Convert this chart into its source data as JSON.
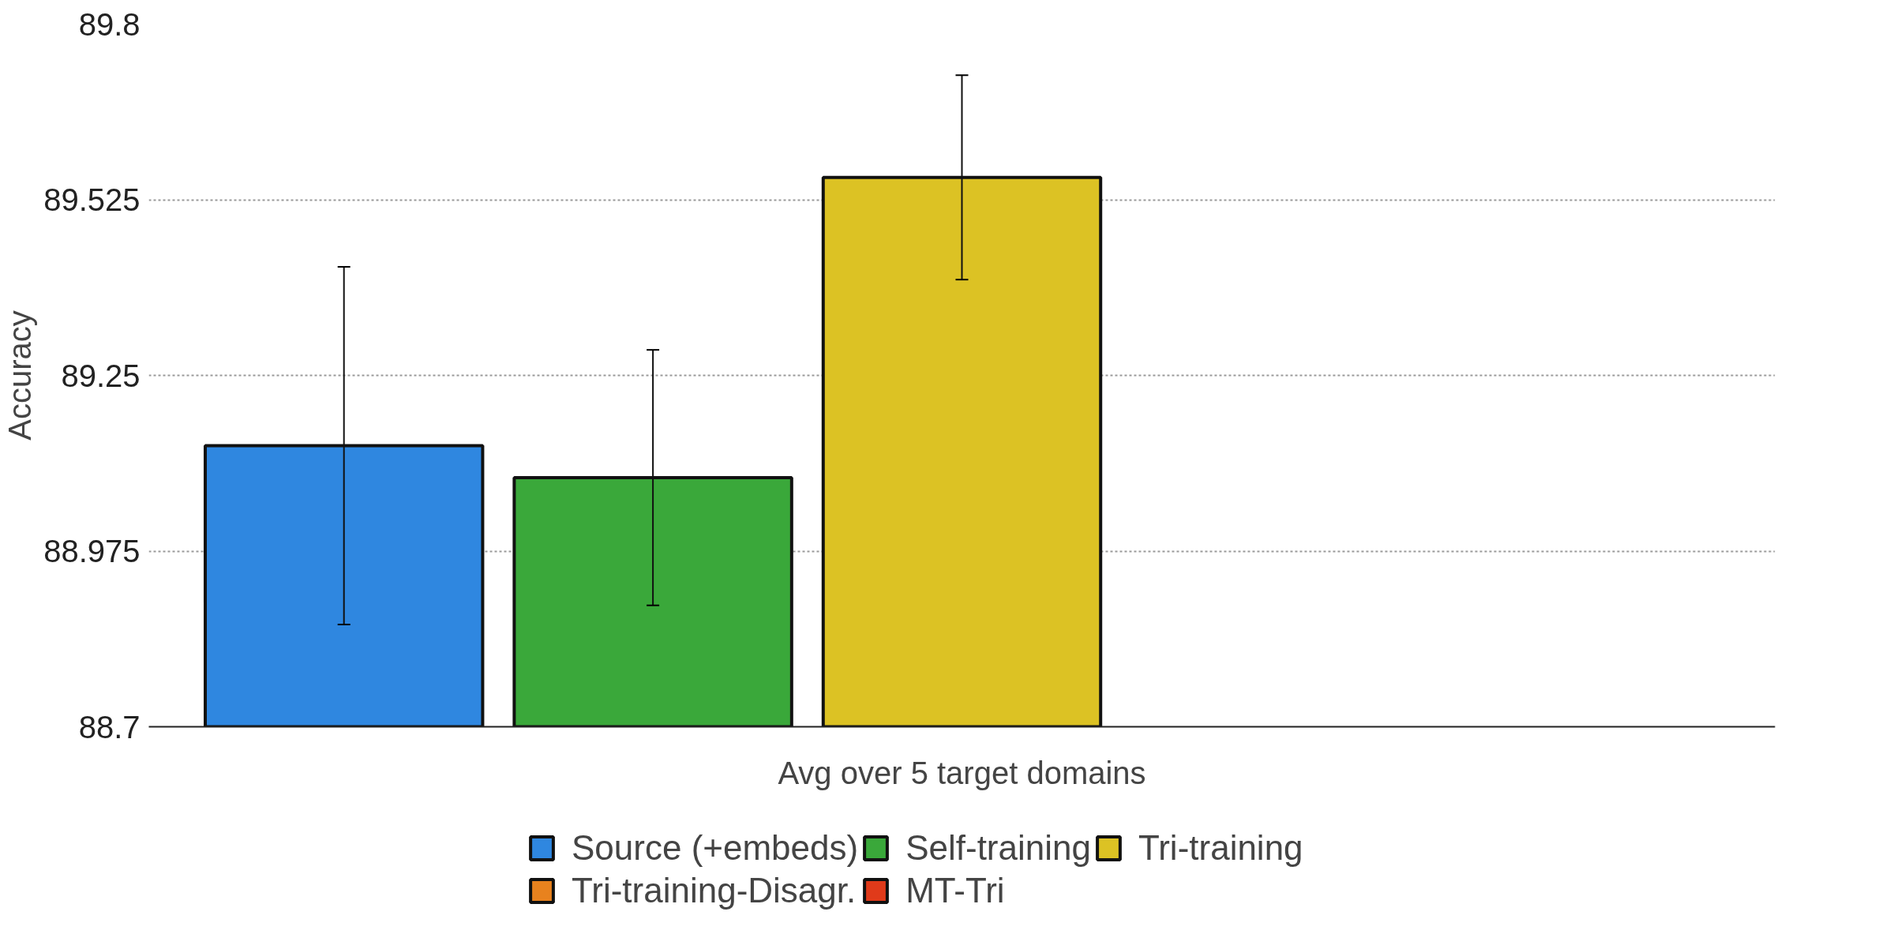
{
  "chart_data": {
    "type": "bar",
    "ylabel": "Accuracy",
    "categories": [
      "Avg over 5 target domains"
    ],
    "series": [
      {
        "name": "Source (+embeds)",
        "color": "#2f87e0",
        "values": [
          89.14
        ],
        "errors": [
          [
            88.86,
            89.42
          ]
        ]
      },
      {
        "name": "Self-training",
        "color": "#3aa83a",
        "values": [
          89.09
        ],
        "errors": [
          [
            88.89,
            89.29
          ]
        ]
      },
      {
        "name": "Tri-training",
        "color": "#dcc224",
        "values": [
          89.56
        ],
        "errors": [
          [
            89.4,
            89.72
          ]
        ]
      },
      {
        "name": "Tri-training-Disagr.",
        "color": "#e8821e",
        "values": [
          null
        ],
        "errors": [
          null
        ]
      },
      {
        "name": "MT-Tri",
        "color": "#e03a1a",
        "values": [
          null
        ],
        "errors": [
          null
        ]
      }
    ],
    "ylim": [
      88.7,
      89.8
    ],
    "yticks": [
      88.7,
      88.975,
      89.25,
      89.525,
      89.8
    ],
    "grid": "y",
    "legend": "bottom"
  }
}
